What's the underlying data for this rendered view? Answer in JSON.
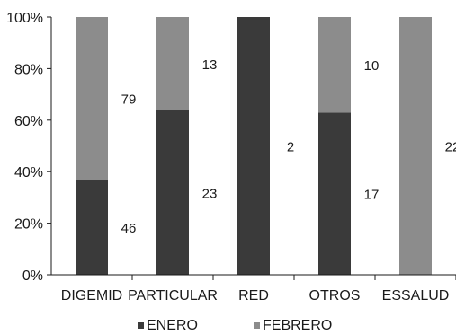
{
  "chart_data": {
    "type": "bar",
    "stacked": true,
    "normalized": true,
    "categories": [
      "DIGEMID",
      "PARTICULAR",
      "RED",
      "OTROS",
      "ESSALUD"
    ],
    "series": [
      {
        "name": "ENERO",
        "color": "#3a3a3a",
        "values": [
          46,
          23,
          2,
          17,
          0
        ],
        "labels": [
          "46",
          "23",
          "2",
          "17",
          ""
        ]
      },
      {
        "name": "FEBRERO",
        "color": "#8c8c8c",
        "values": [
          79,
          13,
          0,
          10,
          22
        ],
        "labels": [
          "79",
          "13",
          "",
          "10",
          "22"
        ]
      }
    ],
    "yticks": [
      "0%",
      "20%",
      "40%",
      "60%",
      "80%",
      "100%"
    ],
    "ylim": [
      0,
      100
    ],
    "legend_position": "bottom",
    "grid": false
  }
}
